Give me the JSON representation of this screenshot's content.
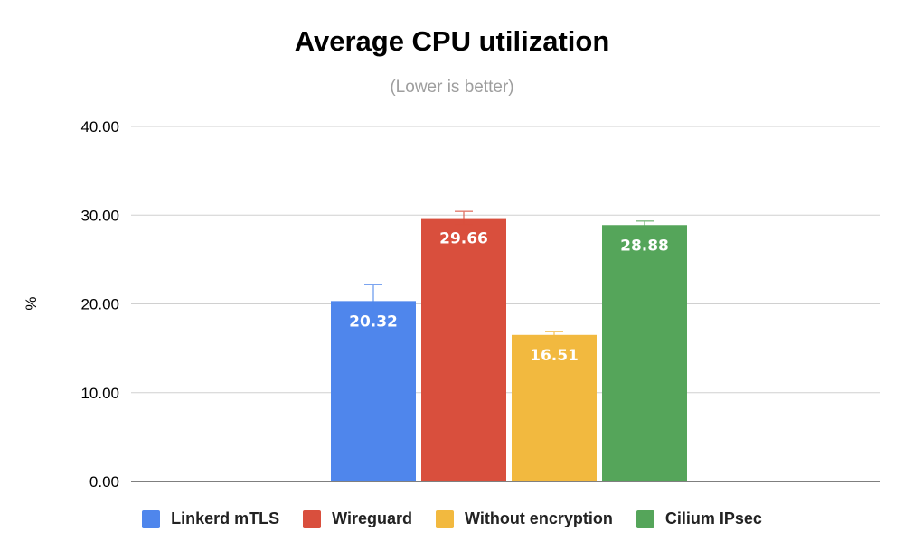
{
  "chart_data": {
    "type": "bar",
    "title": "Average CPU utilization",
    "subtitle": "(Lower is better)",
    "ylabel": "%",
    "xlabel": "",
    "ylim": [
      0,
      40
    ],
    "yticks": [
      "0.00",
      "10.00",
      "20.00",
      "30.00",
      "40.00"
    ],
    "ytick_values": [
      0,
      10,
      20,
      30,
      40
    ],
    "grid": true,
    "legend_position": "bottom",
    "series": [
      {
        "name": "Linkerd mTLS",
        "value": 20.32,
        "label": "20.32",
        "error": 1.9,
        "color": "#4f86ec"
      },
      {
        "name": "Wireguard",
        "value": 29.66,
        "label": "29.66",
        "error": 0.75,
        "color": "#d94f3d"
      },
      {
        "name": "Without encryption",
        "value": 16.51,
        "label": "16.51",
        "error": 0.35,
        "color": "#f2b93f"
      },
      {
        "name": "Cilium IPsec",
        "value": 28.88,
        "label": "28.88",
        "error": 0.45,
        "color": "#55a55a"
      }
    ]
  }
}
